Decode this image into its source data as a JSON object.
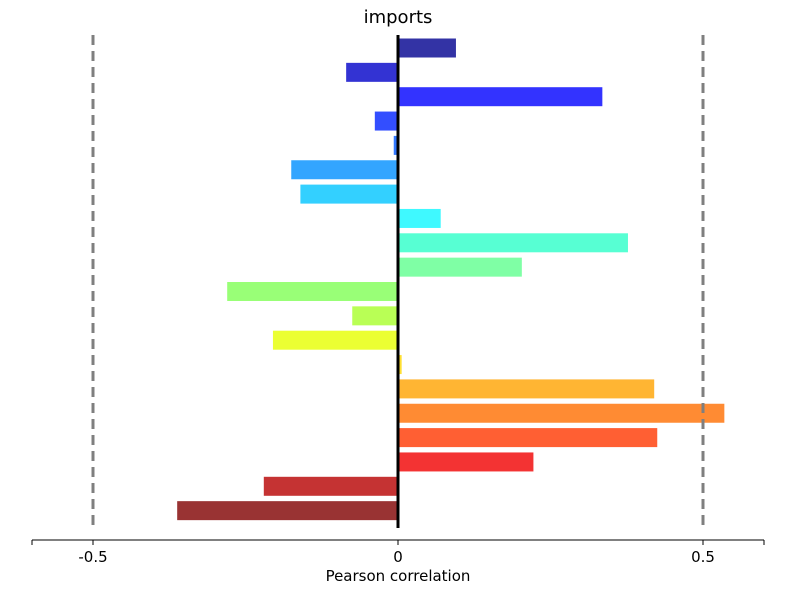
{
  "chart_data": {
    "type": "bar",
    "orientation": "horizontal",
    "title": "imports",
    "xlabel": "Pearson correlation",
    "ylabel": "",
    "xlim": [
      -0.6,
      0.6
    ],
    "xticks": [
      -0.5,
      0,
      0.5
    ],
    "xtick_labels": [
      "-0.5",
      "0",
      "0.5"
    ],
    "reference_lines": [
      -0.5,
      0.5
    ],
    "zero_line": 0,
    "grid": false,
    "values": [
      0.095,
      -0.085,
      0.335,
      -0.038,
      -0.007,
      -0.175,
      -0.16,
      0.07,
      0.377,
      0.203,
      -0.28,
      -0.075,
      -0.205,
      0.006,
      0.42,
      0.535,
      0.425,
      0.222,
      -0.22,
      -0.362
    ],
    "colors": [
      "#00008f",
      "#0000c8",
      "#0000ff",
      "#0022ff",
      "#0058ff",
      "#008fff",
      "#00c4ff",
      "#0ff8ff",
      "#2dffc8",
      "#5fff8f",
      "#80ff55",
      "#a8ff2a",
      "#e6ff00",
      "#ffd800",
      "#ffa200",
      "#ff6e00",
      "#ff3700",
      "#f00000",
      "#b60000",
      "#800000"
    ],
    "bar_alpha": 0.8,
    "reference_line_color": "#7f7f7f",
    "zero_line_color": "#000000"
  }
}
